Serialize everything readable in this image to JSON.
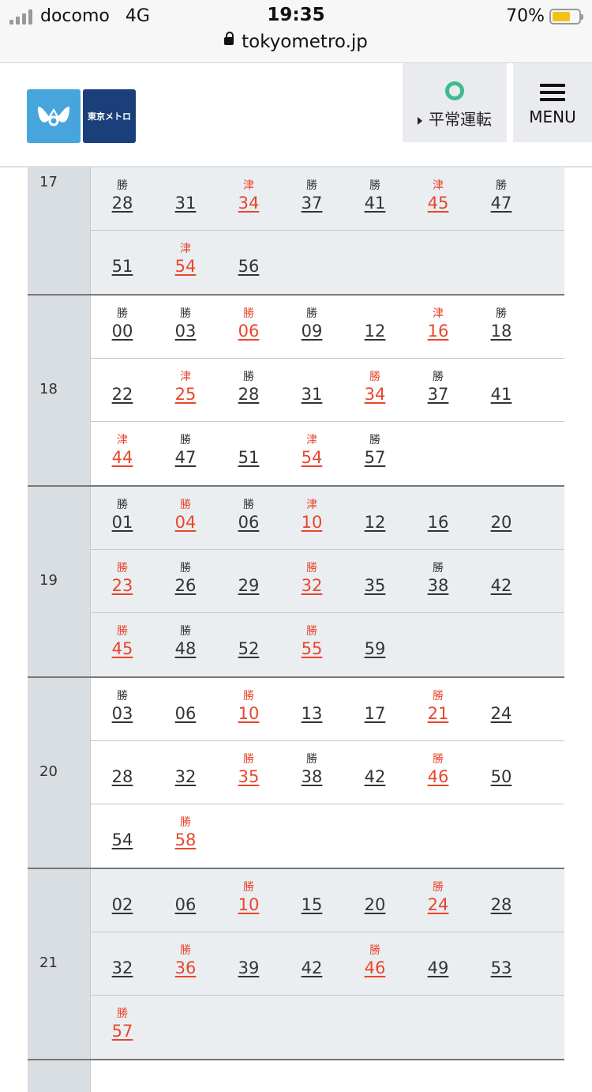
{
  "status_bar": {
    "carrier": "docomo",
    "network": "4G",
    "time": "19:35",
    "battery": "70%",
    "url": "tokyometro.jp"
  },
  "header": {
    "logo_label": "東京メトロ",
    "operation_label": "平常運転",
    "menu_label": "MENU",
    "colors": {
      "logo_blue": "#48a5dc",
      "logo_navy": "#1a3f7a",
      "status_green": "#3dbb8e",
      "highlight_red": "#e8462e"
    }
  },
  "timetable": [
    {
      "hour": "17",
      "rows": [
        [
          {
            "dest": "勝",
            "min": "28",
            "red": false
          },
          {
            "dest": "",
            "min": "31",
            "red": false
          },
          {
            "dest": "津",
            "min": "34",
            "red": true
          },
          {
            "dest": "勝",
            "min": "37",
            "red": false
          },
          {
            "dest": "勝",
            "min": "41",
            "red": false
          },
          {
            "dest": "津",
            "min": "45",
            "red": true
          },
          {
            "dest": "勝",
            "min": "47",
            "red": false
          }
        ],
        [
          {
            "dest": "",
            "min": "51",
            "red": false
          },
          {
            "dest": "津",
            "min": "54",
            "red": true
          },
          {
            "dest": "",
            "min": "56",
            "red": false
          }
        ]
      ]
    },
    {
      "hour": "18",
      "rows": [
        [
          {
            "dest": "勝",
            "min": "00",
            "red": false
          },
          {
            "dest": "勝",
            "min": "03",
            "red": false
          },
          {
            "dest": "勝",
            "min": "06",
            "red": true
          },
          {
            "dest": "勝",
            "min": "09",
            "red": false
          },
          {
            "dest": "",
            "min": "12",
            "red": false
          },
          {
            "dest": "津",
            "min": "16",
            "red": true
          },
          {
            "dest": "勝",
            "min": "18",
            "red": false
          }
        ],
        [
          {
            "dest": "",
            "min": "22",
            "red": false
          },
          {
            "dest": "津",
            "min": "25",
            "red": true
          },
          {
            "dest": "勝",
            "min": "28",
            "red": false
          },
          {
            "dest": "",
            "min": "31",
            "red": false
          },
          {
            "dest": "勝",
            "min": "34",
            "red": true
          },
          {
            "dest": "勝",
            "min": "37",
            "red": false
          },
          {
            "dest": "",
            "min": "41",
            "red": false
          }
        ],
        [
          {
            "dest": "津",
            "min": "44",
            "red": true
          },
          {
            "dest": "勝",
            "min": "47",
            "red": false
          },
          {
            "dest": "",
            "min": "51",
            "red": false
          },
          {
            "dest": "津",
            "min": "54",
            "red": true
          },
          {
            "dest": "勝",
            "min": "57",
            "red": false
          }
        ]
      ]
    },
    {
      "hour": "19",
      "rows": [
        [
          {
            "dest": "勝",
            "min": "01",
            "red": false
          },
          {
            "dest": "勝",
            "min": "04",
            "red": true
          },
          {
            "dest": "勝",
            "min": "06",
            "red": false
          },
          {
            "dest": "津",
            "min": "10",
            "red": true
          },
          {
            "dest": "",
            "min": "12",
            "red": false
          },
          {
            "dest": "",
            "min": "16",
            "red": false
          },
          {
            "dest": "",
            "min": "20",
            "red": false
          }
        ],
        [
          {
            "dest": "勝",
            "min": "23",
            "red": true
          },
          {
            "dest": "勝",
            "min": "26",
            "red": false
          },
          {
            "dest": "",
            "min": "29",
            "red": false
          },
          {
            "dest": "勝",
            "min": "32",
            "red": true
          },
          {
            "dest": "",
            "min": "35",
            "red": false
          },
          {
            "dest": "勝",
            "min": "38",
            "red": false
          },
          {
            "dest": "",
            "min": "42",
            "red": false
          }
        ],
        [
          {
            "dest": "勝",
            "min": "45",
            "red": true
          },
          {
            "dest": "勝",
            "min": "48",
            "red": false
          },
          {
            "dest": "",
            "min": "52",
            "red": false
          },
          {
            "dest": "勝",
            "min": "55",
            "red": true
          },
          {
            "dest": "",
            "min": "59",
            "red": false
          }
        ]
      ]
    },
    {
      "hour": "20",
      "rows": [
        [
          {
            "dest": "勝",
            "min": "03",
            "red": false
          },
          {
            "dest": "",
            "min": "06",
            "red": false
          },
          {
            "dest": "勝",
            "min": "10",
            "red": true
          },
          {
            "dest": "",
            "min": "13",
            "red": false
          },
          {
            "dest": "",
            "min": "17",
            "red": false
          },
          {
            "dest": "勝",
            "min": "21",
            "red": true
          },
          {
            "dest": "",
            "min": "24",
            "red": false
          }
        ],
        [
          {
            "dest": "",
            "min": "28",
            "red": false
          },
          {
            "dest": "",
            "min": "32",
            "red": false
          },
          {
            "dest": "勝",
            "min": "35",
            "red": true
          },
          {
            "dest": "勝",
            "min": "38",
            "red": false
          },
          {
            "dest": "",
            "min": "42",
            "red": false
          },
          {
            "dest": "勝",
            "min": "46",
            "red": true
          },
          {
            "dest": "",
            "min": "50",
            "red": false
          }
        ],
        [
          {
            "dest": "",
            "min": "54",
            "red": false
          },
          {
            "dest": "勝",
            "min": "58",
            "red": true
          }
        ]
      ]
    },
    {
      "hour": "21",
      "rows": [
        [
          {
            "dest": "",
            "min": "02",
            "red": false
          },
          {
            "dest": "",
            "min": "06",
            "red": false
          },
          {
            "dest": "勝",
            "min": "10",
            "red": true
          },
          {
            "dest": "",
            "min": "15",
            "red": false
          },
          {
            "dest": "",
            "min": "20",
            "red": false
          },
          {
            "dest": "勝",
            "min": "24",
            "red": true
          },
          {
            "dest": "",
            "min": "28",
            "red": false
          }
        ],
        [
          {
            "dest": "",
            "min": "32",
            "red": false
          },
          {
            "dest": "勝",
            "min": "36",
            "red": true
          },
          {
            "dest": "",
            "min": "39",
            "red": false
          },
          {
            "dest": "",
            "min": "42",
            "red": false
          },
          {
            "dest": "勝",
            "min": "46",
            "red": true
          },
          {
            "dest": "",
            "min": "49",
            "red": false
          },
          {
            "dest": "",
            "min": "53",
            "red": false
          }
        ],
        [
          {
            "dest": "勝",
            "min": "57",
            "red": true
          }
        ]
      ]
    }
  ]
}
